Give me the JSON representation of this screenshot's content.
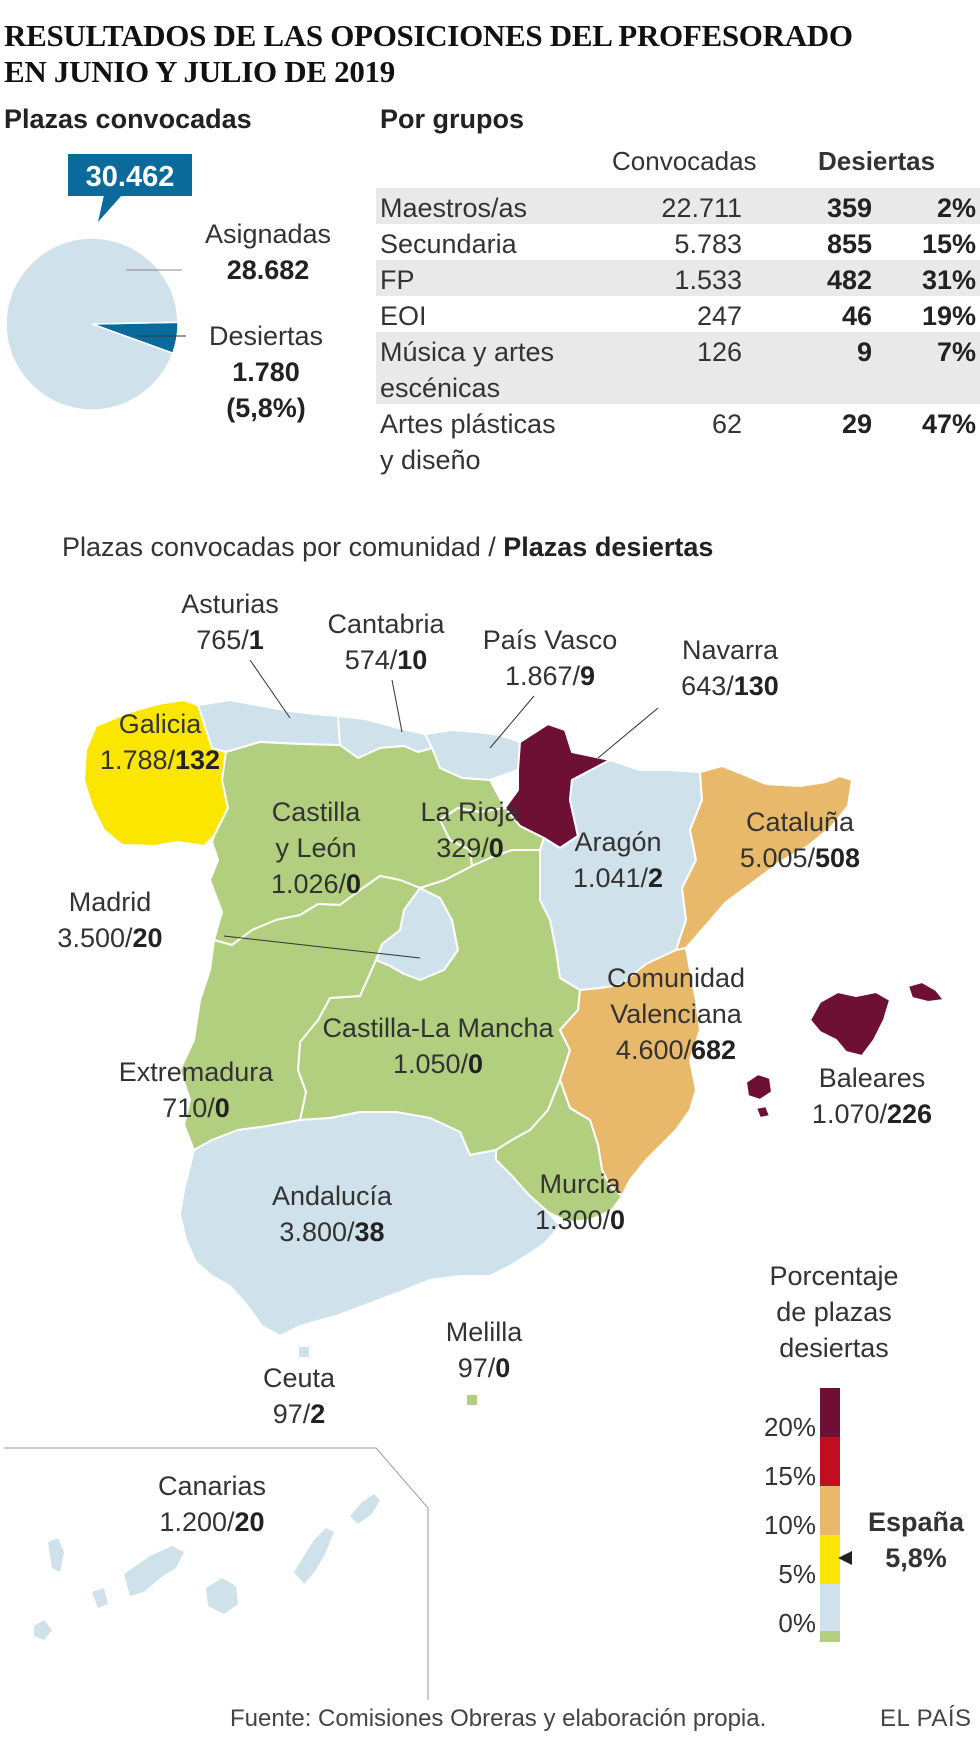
{
  "title": {
    "line1": "RESULTADOS DE LAS OPOSICIONES DEL PROFESORADO",
    "line2": "EN JUNIO Y JULIO DE 2019"
  },
  "pie_section": {
    "heading": "Plazas convocadas",
    "total_badge": "30.462",
    "asignadas_label": "Asignadas",
    "asignadas_value": "28.682",
    "desiertas_label": "Desiertas",
    "desiertas_value": "1.780",
    "desiertas_pct": "(5,8%)"
  },
  "table": {
    "heading": "Por grupos",
    "col_convocadas": "Convocadas",
    "col_desiertas": "Desiertas",
    "rows": [
      {
        "group": "Maestros/as",
        "group2": "",
        "convocadas": "22.711",
        "desiertas": "359",
        "pct": "2%"
      },
      {
        "group": "Secundaria",
        "group2": "",
        "convocadas": "5.783",
        "desiertas": "855",
        "pct": "15%"
      },
      {
        "group": "FP",
        "group2": "",
        "convocadas": "1.533",
        "desiertas": "482",
        "pct": "31%"
      },
      {
        "group": "EOI",
        "group2": "",
        "convocadas": "247",
        "desiertas": "46",
        "pct": "19%"
      },
      {
        "group": "Música y artes",
        "group2": "escénicas",
        "convocadas": "126",
        "desiertas": "9",
        "pct": "7%"
      },
      {
        "group": "Artes plásticas",
        "group2": "y diseño",
        "convocadas": "62",
        "desiertas": "29",
        "pct": "47%"
      }
    ]
  },
  "map": {
    "heading_normal": "Plazas convocadas por comunidad / ",
    "heading_bold": "Plazas desiertas",
    "colors": {
      "c0": "#b2cf7f",
      "c5": "#cfe1ea",
      "c10": "#fbe600",
      "c15": "#e8b96a",
      "c20": "#c00d1f",
      "c20p": "#6e1033"
    },
    "regions": [
      {
        "name": "Asturias",
        "name2": "",
        "conv": "765",
        "des": "1"
      },
      {
        "name": "Cantabria",
        "name2": "",
        "conv": "574",
        "des": "10"
      },
      {
        "name": "País Vasco",
        "name2": "",
        "conv": "1.867",
        "des": "9"
      },
      {
        "name": "Navarra",
        "name2": "",
        "conv": "643",
        "des": "130"
      },
      {
        "name": "Galicia",
        "name2": "",
        "conv": "1.788",
        "des": "132"
      },
      {
        "name": "Castilla",
        "name2": "y León",
        "conv": "1.026",
        "des": "0"
      },
      {
        "name": "La Rioja",
        "name2": "",
        "conv": "329",
        "des": "0"
      },
      {
        "name": "Aragón",
        "name2": "",
        "conv": "1.041",
        "des": "2"
      },
      {
        "name": "Cataluña",
        "name2": "",
        "conv": "5.005",
        "des": "508"
      },
      {
        "name": "Madrid",
        "name2": "",
        "conv": "3.500",
        "des": "20"
      },
      {
        "name": "Comunidad",
        "name2": "Valenciana",
        "conv": "4.600",
        "des": "682"
      },
      {
        "name": "Castilla-La Mancha",
        "name2": "",
        "conv": "1.050",
        "des": "0"
      },
      {
        "name": "Extremadura",
        "name2": "",
        "conv": "710",
        "des": "0"
      },
      {
        "name": "Baleares",
        "name2": "",
        "conv": "1.070",
        "des": "226"
      },
      {
        "name": "Andalucía",
        "name2": "",
        "conv": "3.800",
        "des": "38"
      },
      {
        "name": "Murcia",
        "name2": "",
        "conv": "1.300",
        "des": "0"
      },
      {
        "name": "Melilla",
        "name2": "",
        "conv": "97",
        "des": "0"
      },
      {
        "name": "Ceuta",
        "name2": "",
        "conv": "97",
        "des": "2"
      },
      {
        "name": "Canarias",
        "name2": "",
        "conv": "1.200",
        "des": "20"
      }
    ]
  },
  "legend": {
    "title1": "Porcentaje",
    "title2": "de plazas",
    "title3": "desiertas",
    "ticks": [
      "20%",
      "15%",
      "10%",
      "5%",
      "0%"
    ],
    "marker_label": "España",
    "marker_value": "5,8%"
  },
  "footer": {
    "source": "Fuente: Comisiones Obreras y elaboración propia.",
    "brand": "EL PAÍS"
  },
  "chart_data": [
    {
      "type": "pie",
      "title": "Plazas convocadas",
      "total": 30462,
      "slices": [
        {
          "label": "Asignadas",
          "value": 28682,
          "color": "#cfe1ea"
        },
        {
          "label": "Desiertas",
          "value": 1780,
          "color": "#0b6a9c"
        }
      ]
    },
    {
      "type": "table",
      "title": "Por grupos",
      "columns": [
        "",
        "Convocadas",
        "Desiertas",
        ""
      ],
      "rows": [
        [
          "Maestros/as",
          22711,
          359,
          2
        ],
        [
          "Secundaria",
          5783,
          855,
          15
        ],
        [
          "FP",
          1533,
          482,
          31
        ],
        [
          "EOI",
          247,
          46,
          19
        ],
        [
          "Música y artes escénicas",
          126,
          9,
          7
        ],
        [
          "Artes plásticas y diseño",
          62,
          29,
          47
        ]
      ]
    }
  ]
}
